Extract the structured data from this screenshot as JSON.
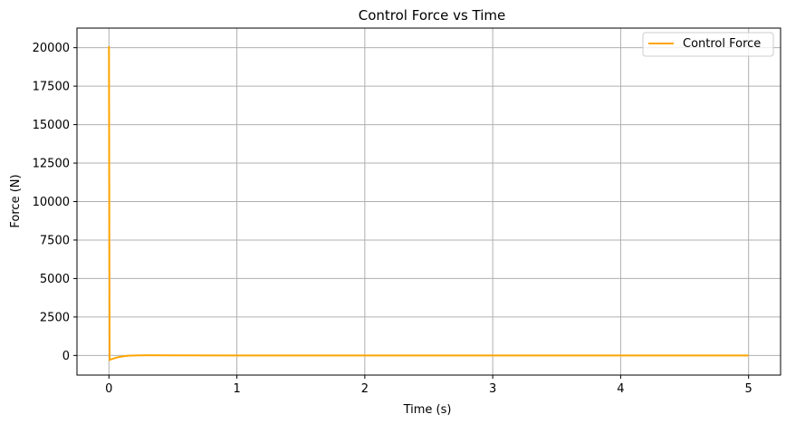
{
  "chart_data": {
    "type": "line",
    "title": "Control Force vs Time",
    "xlabel": "Time (s)",
    "ylabel": "Force (N)",
    "xlim": [
      -0.25,
      5.25
    ],
    "ylim": [
      -1275,
      21275
    ],
    "grid": true,
    "legend_position": "top-right",
    "x_ticks": [
      0,
      1,
      2,
      3,
      4,
      5
    ],
    "x_tick_labels": [
      "0",
      "1",
      "2",
      "3",
      "4",
      "5"
    ],
    "y_ticks": [
      0,
      2500,
      5000,
      7500,
      10000,
      12500,
      15000,
      17500,
      20000
    ],
    "y_tick_labels": [
      "0",
      "2500",
      "5000",
      "7500",
      "10000",
      "12500",
      "15000",
      "17500",
      "20000"
    ],
    "series": [
      {
        "name": "Control Force",
        "color": "#ffa500",
        "x": [
          0,
          0.005,
          0.01,
          0.02,
          0.04,
          0.06,
          0.08,
          0.1,
          0.12,
          0.15,
          0.2,
          0.25,
          0.3,
          0.5,
          1,
          2,
          3,
          4,
          5
        ],
        "y": [
          20100,
          -300,
          -270,
          -240,
          -190,
          -140,
          -100,
          -70,
          -45,
          -20,
          0,
          8,
          10,
          5,
          0,
          0,
          0,
          0,
          0
        ]
      }
    ]
  }
}
